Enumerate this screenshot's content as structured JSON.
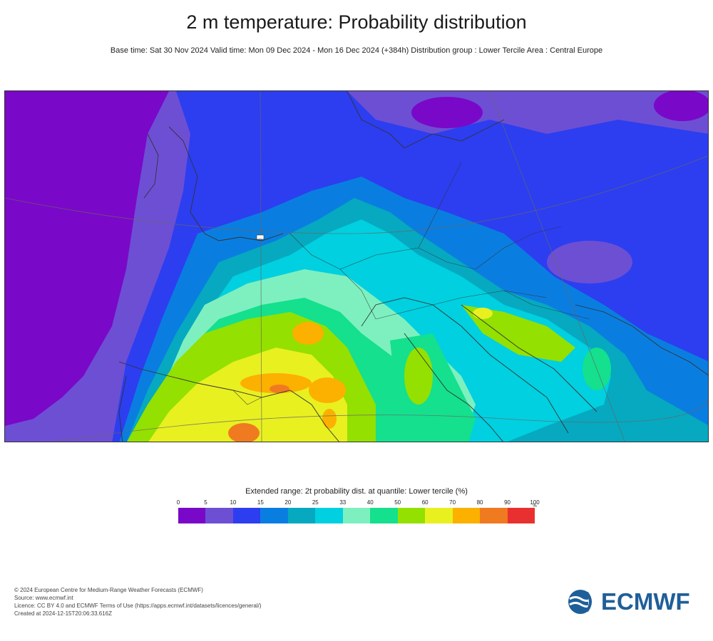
{
  "header": {
    "title": "2 m temperature: Probability distribution",
    "subtitle": "Base time: Sat 30 Nov 2024 Valid time: Mon 09 Dec 2024 - Mon 16 Dec 2024 (+384h) Distribution group : Lower Tercile Area : Central Europe"
  },
  "map": {
    "city_marker_label": "..."
  },
  "legend": {
    "title": "Extended range: 2t probability dist. at quantile: Lower tercile (%)",
    "ticks": [
      "0",
      "5",
      "10",
      "15",
      "20",
      "25",
      "33",
      "40",
      "50",
      "60",
      "70",
      "80",
      "90",
      "100"
    ],
    "unit": "%",
    "colors": [
      "#7a08c8",
      "#6d4fd4",
      "#2c3ef0",
      "#0a7ee0",
      "#06a9c0",
      "#00d0e0",
      "#7ef0c0",
      "#14e08e",
      "#94e000",
      "#e8f020",
      "#fcb000",
      "#f07a20",
      "#e83030"
    ]
  },
  "footer": {
    "line1": "© 2024 European Centre for Medium-Range Weather Forecasts (ECMWF)",
    "line2": "Source: www.ecmwf.int",
    "line3": "Licence: CC BY 4.0 and ECMWF Terms of Use (https://apps.ecmwf.int/datasets/licences/general/)",
    "line4": "Created at 2024-12-15T20:06:33.616Z"
  },
  "logo": {
    "text": "ECMWF",
    "color": "#1f5f99"
  }
}
